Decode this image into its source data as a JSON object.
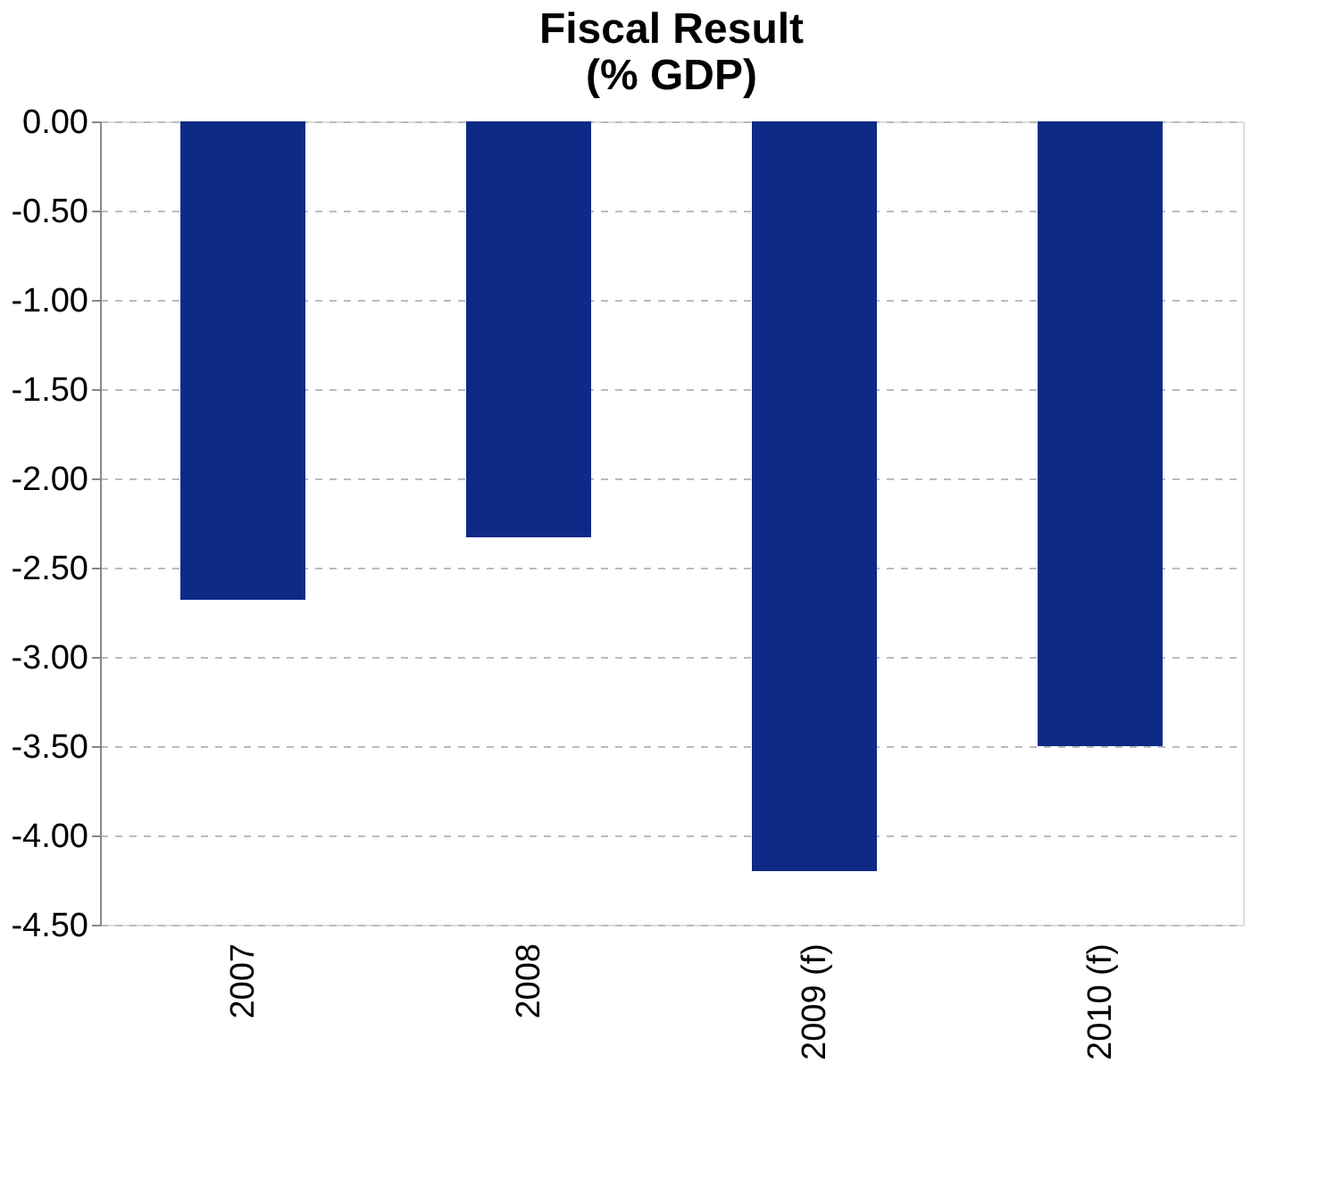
{
  "chart_data": {
    "type": "bar",
    "title": [
      "Fiscal Result",
      "(% GDP)"
    ],
    "categories": [
      "2007",
      "2008",
      "2009 (f)",
      "2010 (f)"
    ],
    "values": [
      -2.68,
      -2.33,
      -4.2,
      -3.5
    ],
    "color": "#0d2a87",
    "ylim": [
      -4.5,
      0
    ],
    "yticks": [
      {
        "value": 0,
        "label": "0.00"
      },
      {
        "value": -0.5,
        "label": "-0.50"
      },
      {
        "value": -1,
        "label": "-1.00"
      },
      {
        "value": -1.5,
        "label": "-1.50"
      },
      {
        "value": -2,
        "label": "-2.00"
      },
      {
        "value": -2.5,
        "label": "-2.50"
      },
      {
        "value": -3,
        "label": "-3.00"
      },
      {
        "value": -3.5,
        "label": "-3.50"
      },
      {
        "value": -4,
        "label": "-4.00"
      },
      {
        "value": -4.5,
        "label": "-4.50"
      }
    ],
    "grid": "y"
  }
}
